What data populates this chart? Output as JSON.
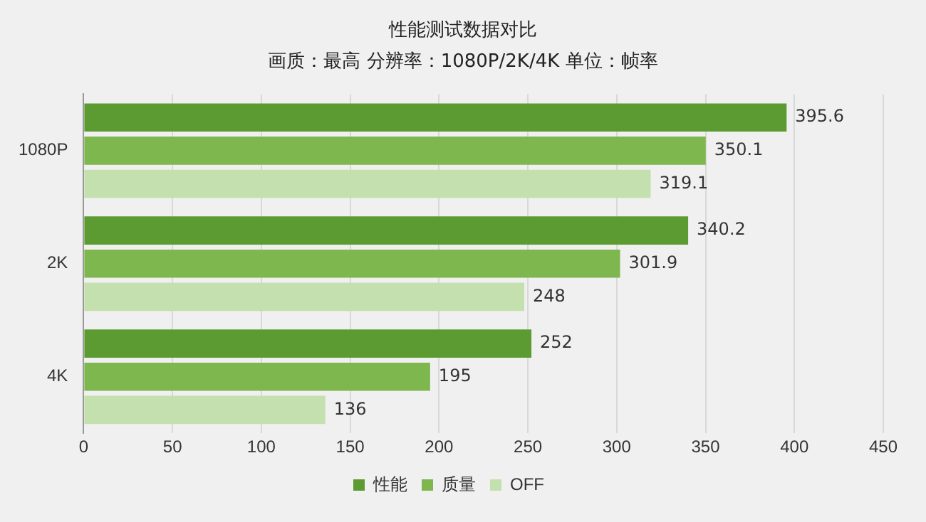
{
  "chart_data": {
    "type": "bar",
    "orientation": "horizontal",
    "title": "性能测试数据对比",
    "subtitle": "画质：最高 分辨率：1080P/2K/4K 单位：帧率",
    "categories": [
      "1080P",
      "2K",
      "4K"
    ],
    "series": [
      {
        "name": "性能",
        "color": "#5c9b31",
        "values": [
          395.6,
          340.2,
          252
        ]
      },
      {
        "name": "质量",
        "color": "#7db74e",
        "values": [
          350.1,
          301.9,
          195
        ]
      },
      {
        "name": "OFF",
        "color": "#c4e0ae",
        "values": [
          319.1,
          248,
          136
        ]
      }
    ],
    "xlim": [
      0,
      450
    ],
    "xticks": [
      0,
      50,
      100,
      150,
      200,
      250,
      300,
      350,
      400,
      450
    ],
    "grid": "x",
    "legend": "bottom",
    "data_labels": true
  }
}
